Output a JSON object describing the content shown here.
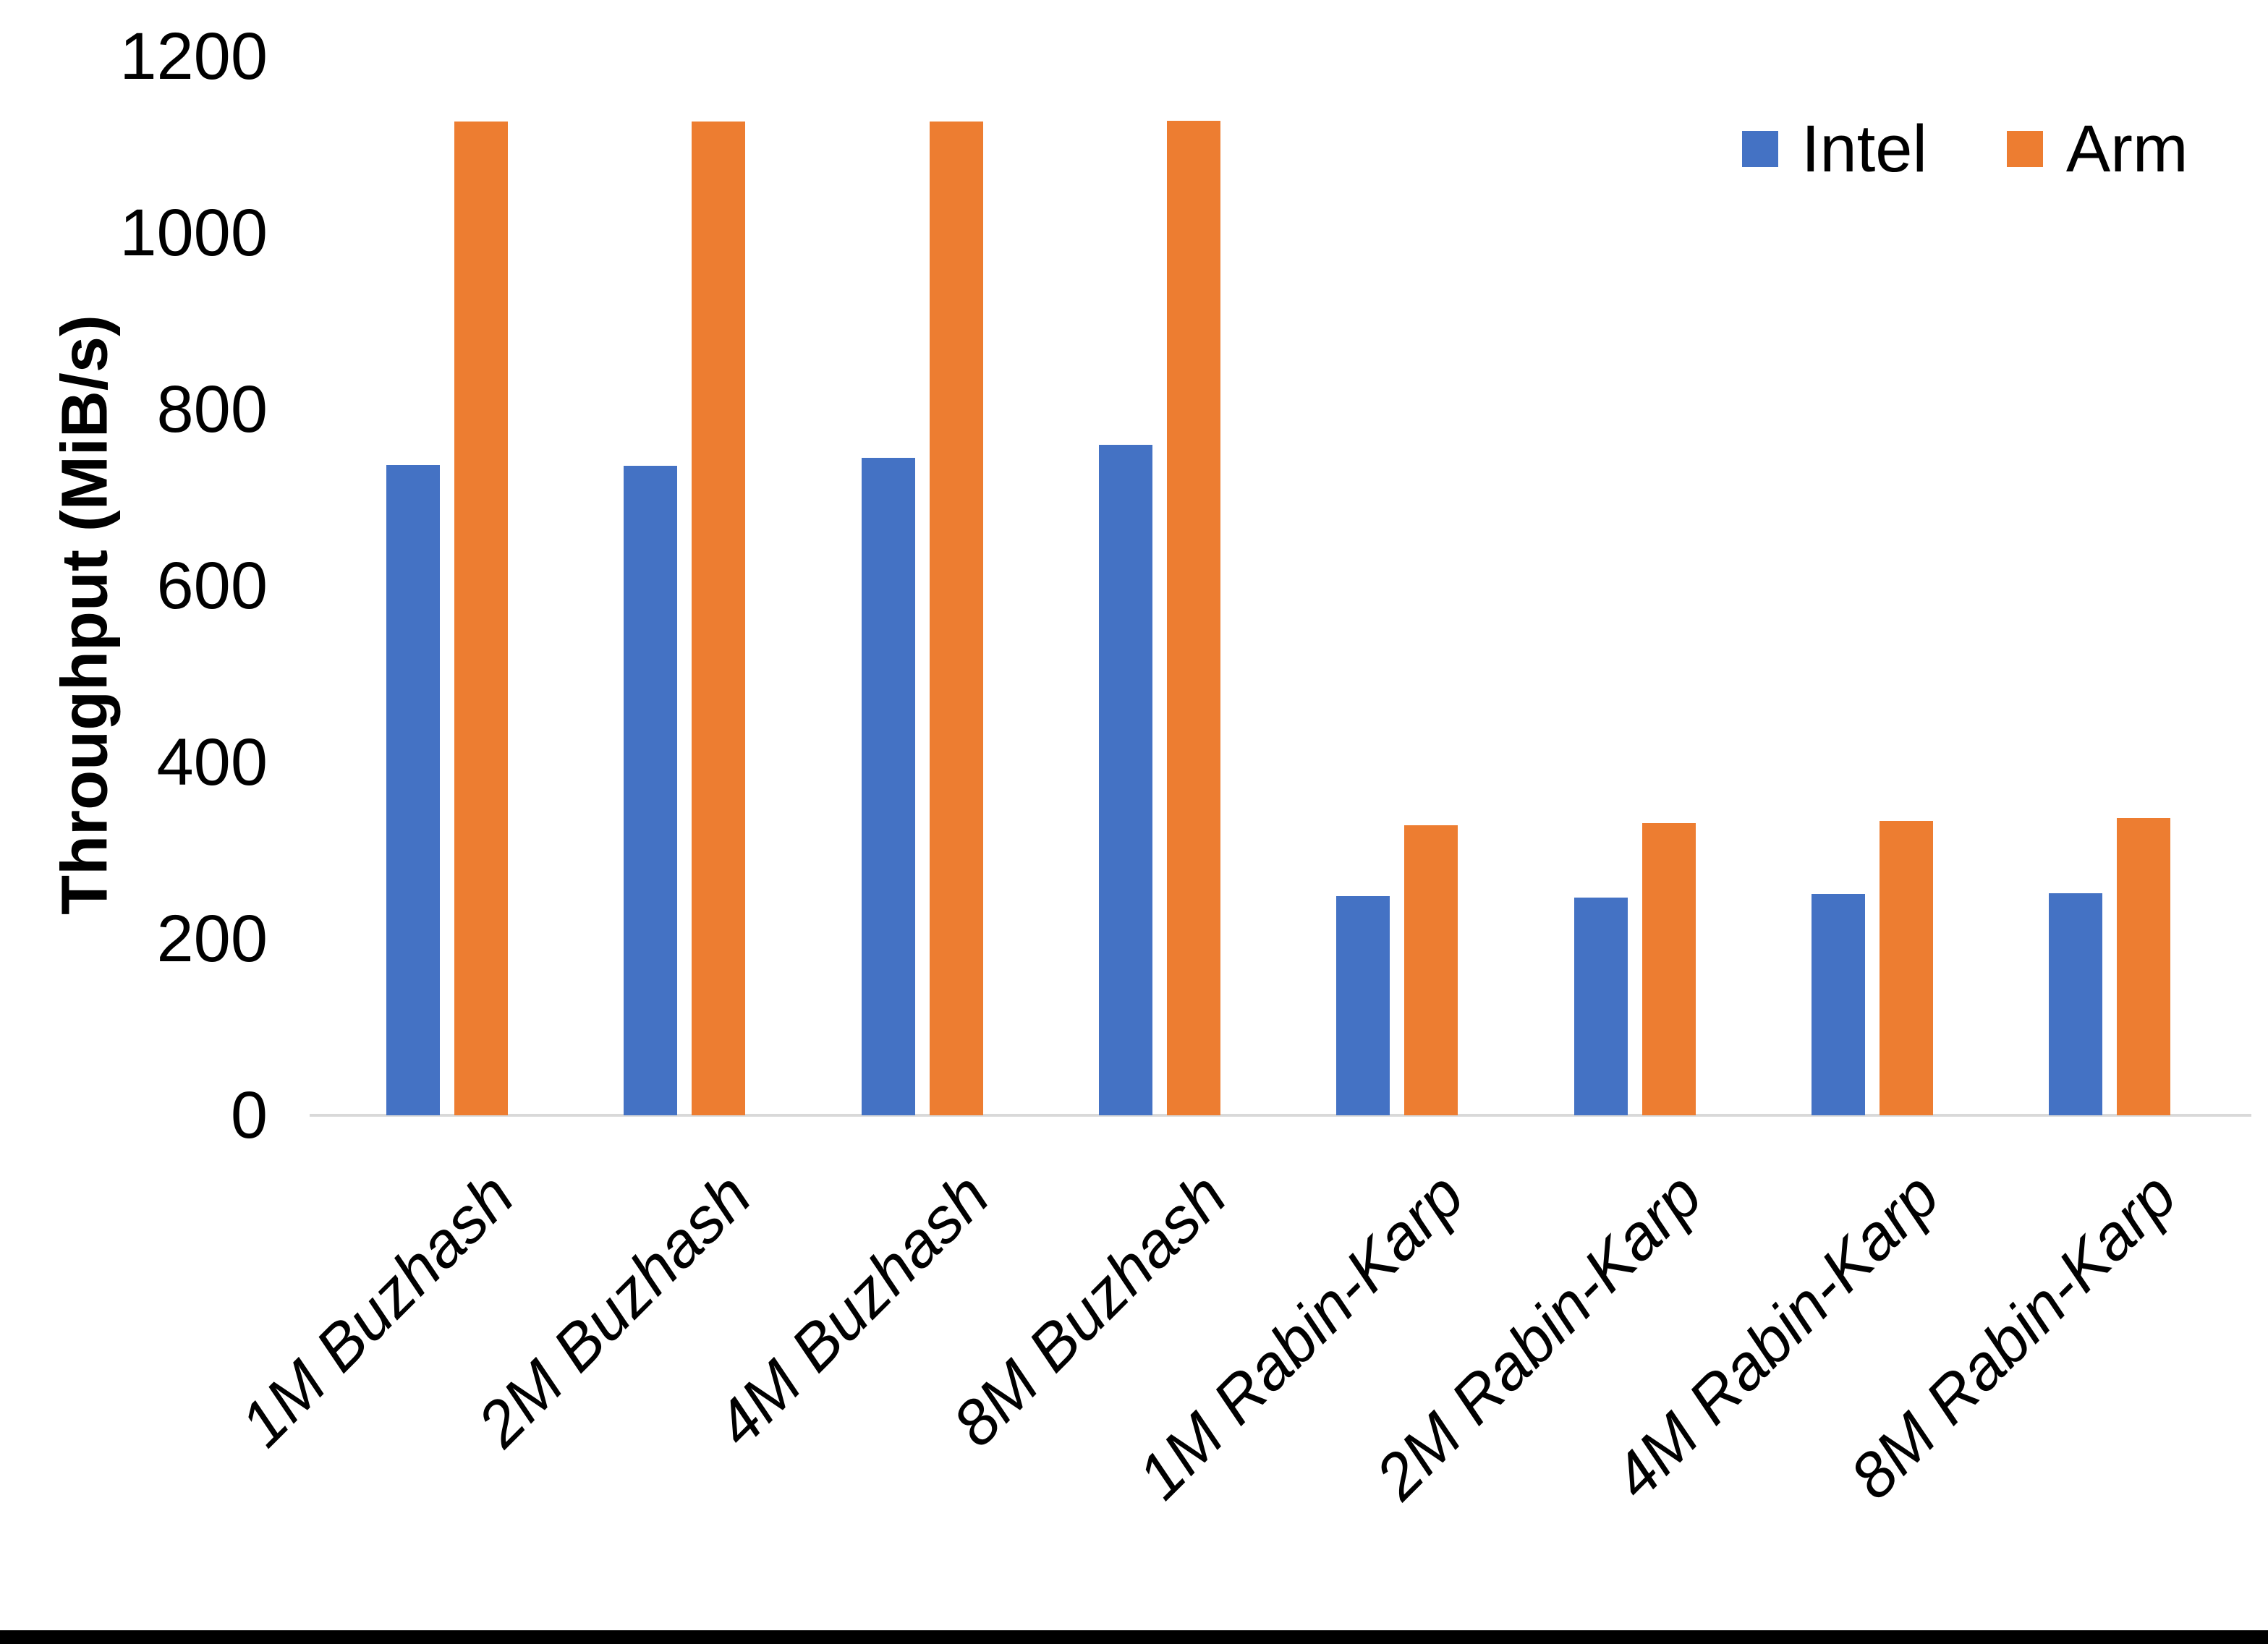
{
  "chart_data": {
    "type": "bar",
    "title": "",
    "xlabel": "",
    "ylabel": "Throughput (MiB/s)",
    "categories": [
      "1M Buzhash",
      "2M Buzhash",
      "4M Buzhash",
      "8M Buzhash",
      "1M Rabin-Karp",
      "2M Rabin-Karp",
      "4M Rabin-Karp",
      "8M Rabin-Karp"
    ],
    "series": [
      {
        "name": "Intel",
        "color": "#4472C4",
        "values": [
          737,
          736,
          745,
          760,
          248,
          247,
          251,
          252
        ]
      },
      {
        "name": "Arm",
        "color": "#ED7D31",
        "values": [
          1126,
          1126,
          1126,
          1127,
          329,
          331,
          334,
          337
        ]
      }
    ],
    "ylim": [
      0,
      1200
    ],
    "yticks": [
      0,
      200,
      400,
      600,
      800,
      1000,
      1200
    ],
    "grid": false,
    "legend_position": "top-right",
    "baseline_color": "#D9D9D9"
  }
}
